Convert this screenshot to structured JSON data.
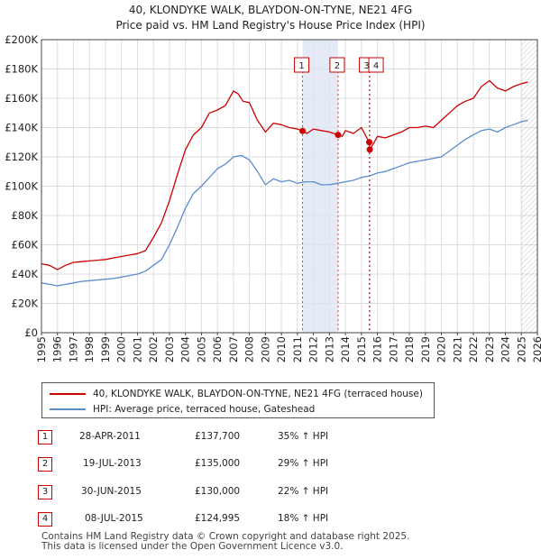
{
  "title_line1": "40, KLONDYKE WALK, BLAYDON-ON-TYNE, NE21 4FG",
  "title_line2": "Price paid vs. HM Land Registry's House Price Index (HPI)",
  "chart_data": {
    "type": "line",
    "title": "40, KLONDYKE WALK, BLAYDON-ON-TYNE, NE21 4FG",
    "subtitle": "Price paid vs. HM Land Registry's House Price Index (HPI)",
    "xlabel": "",
    "ylabel": "",
    "xlim": [
      1995,
      2026
    ],
    "ylim": [
      0,
      200000
    ],
    "y_ticks": [
      0,
      20000,
      40000,
      60000,
      80000,
      100000,
      120000,
      140000,
      160000,
      180000,
      200000
    ],
    "y_tick_labels": [
      "£0",
      "£20K",
      "£40K",
      "£60K",
      "£80K",
      "£100K",
      "£120K",
      "£140K",
      "£160K",
      "£180K",
      "£200K"
    ],
    "x_ticks": [
      1995,
      1996,
      1997,
      1998,
      1999,
      2000,
      2001,
      2002,
      2003,
      2004,
      2005,
      2006,
      2007,
      2008,
      2009,
      2010,
      2011,
      2012,
      2013,
      2014,
      2015,
      2016,
      2017,
      2018,
      2019,
      2020,
      2021,
      2022,
      2023,
      2024,
      2025,
      2026
    ],
    "x_tick_labels": [
      "1995",
      "1996",
      "1997",
      "1998",
      "1999",
      "2000",
      "2001",
      "2002",
      "2003",
      "2004",
      "2005",
      "2006",
      "2007",
      "2008",
      "2009",
      "2010",
      "2011",
      "2012",
      "2013",
      "2014",
      "2015",
      "2016",
      "2017",
      "2018",
      "2019",
      "2020",
      "2021",
      "2022",
      "2023",
      "2024",
      "2025",
      "2026"
    ],
    "grid": true,
    "series": [
      {
        "name": "40, KLONDYKE WALK, BLAYDON-ON-TYNE, NE21 4FG (terraced house)",
        "color": "#cc0000",
        "x": [
          1995.0,
          1995.5,
          1996.0,
          1996.5,
          1997.0,
          1997.5,
          1998.0,
          1998.5,
          1999.0,
          1999.5,
          2000.0,
          2000.5,
          2001.0,
          2001.5,
          2002.0,
          2002.5,
          2003.0,
          2003.5,
          2004.0,
          2004.5,
          2005.0,
          2005.5,
          2006.0,
          2006.5,
          2007.0,
          2007.3,
          2007.6,
          2008.0,
          2008.5,
          2009.0,
          2009.5,
          2010.0,
          2010.5,
          2011.0,
          2011.32,
          2011.6,
          2012.0,
          2012.5,
          2013.0,
          2013.54,
          2013.8,
          2014.0,
          2014.5,
          2015.0,
          2015.49,
          2015.52,
          2015.8,
          2016.0,
          2016.5,
          2017.0,
          2017.5,
          2018.0,
          2018.5,
          2019.0,
          2019.5,
          2020.0,
          2020.5,
          2021.0,
          2021.5,
          2022.0,
          2022.5,
          2023.0,
          2023.5,
          2024.0,
          2024.5,
          2025.0,
          2025.4
        ],
        "values": [
          47000,
          46000,
          43000,
          46000,
          48000,
          48500,
          49000,
          49500,
          50000,
          51000,
          52000,
          53000,
          54000,
          56000,
          65000,
          75000,
          90000,
          108000,
          125000,
          135000,
          140000,
          150000,
          152000,
          155000,
          165000,
          163000,
          158000,
          157000,
          145000,
          137000,
          143000,
          142000,
          140000,
          139000,
          137700,
          136000,
          139000,
          138000,
          137000,
          135000,
          134000,
          138000,
          136000,
          140000,
          130000,
          124995,
          130000,
          134000,
          133000,
          135000,
          137000,
          140000,
          140000,
          141000,
          140000,
          145000,
          150000,
          155000,
          158000,
          160000,
          168000,
          172000,
          167000,
          165000,
          168000,
          170000,
          171000
        ]
      },
      {
        "name": "HPI: Average price, terraced house, Gateshead",
        "color": "#5b8ccc",
        "x": [
          1995.0,
          1995.5,
          1996.0,
          1996.5,
          1997.0,
          1997.5,
          1998.0,
          1998.5,
          1999.0,
          1999.5,
          2000.0,
          2000.5,
          2001.0,
          2001.5,
          2002.0,
          2002.5,
          2003.0,
          2003.5,
          2004.0,
          2004.5,
          2005.0,
          2005.5,
          2006.0,
          2006.5,
          2007.0,
          2007.5,
          2008.0,
          2008.5,
          2009.0,
          2009.5,
          2010.0,
          2010.5,
          2011.0,
          2011.5,
          2012.0,
          2012.5,
          2013.0,
          2013.5,
          2014.0,
          2014.5,
          2015.0,
          2015.5,
          2016.0,
          2016.5,
          2017.0,
          2017.5,
          2018.0,
          2018.5,
          2019.0,
          2019.5,
          2020.0,
          2020.5,
          2021.0,
          2021.5,
          2022.0,
          2022.5,
          2023.0,
          2023.5,
          2024.0,
          2024.5,
          2025.0,
          2025.4
        ],
        "values": [
          34000,
          33000,
          32000,
          33000,
          34000,
          35000,
          35500,
          36000,
          36500,
          37000,
          38000,
          39000,
          40000,
          42000,
          46000,
          50000,
          60000,
          72000,
          85000,
          95000,
          100000,
          106000,
          112000,
          115000,
          120000,
          121000,
          118000,
          110000,
          101000,
          105000,
          103000,
          104000,
          102000,
          103000,
          103000,
          101000,
          101000,
          102000,
          103000,
          104000,
          106000,
          107000,
          109000,
          110000,
          112000,
          114000,
          116000,
          117000,
          118000,
          119000,
          120000,
          124000,
          128000,
          132000,
          135000,
          138000,
          139000,
          137000,
          140000,
          142000,
          144000,
          145000
        ]
      }
    ],
    "annotations": [
      {
        "label": "1",
        "x": 2011.32,
        "value": 137700
      },
      {
        "label": "2",
        "x": 2013.54,
        "value": 135000
      },
      {
        "label": "3",
        "x": 2015.49,
        "value": 130000
      },
      {
        "label": "4",
        "x": 2015.52,
        "value": 124995
      }
    ],
    "shaded_period": [
      2011.32,
      2013.54
    ],
    "forecast_hatch_from": 2025.0
  },
  "legend": {
    "items": [
      {
        "label": "40, KLONDYKE WALK, BLAYDON-ON-TYNE, NE21 4FG (terraced house)",
        "color": "#cc0000"
      },
      {
        "label": "HPI: Average price, terraced house, Gateshead",
        "color": "#5b8ccc"
      }
    ]
  },
  "sales": [
    {
      "num": "1",
      "date": "28-APR-2011",
      "price": "£137,700",
      "hpi": "35% ↑ HPI"
    },
    {
      "num": "2",
      "date": "19-JUL-2013",
      "price": "£135,000",
      "hpi": "29% ↑ HPI"
    },
    {
      "num": "3",
      "date": "30-JUN-2015",
      "price": "£130,000",
      "hpi": "22% ↑ HPI"
    },
    {
      "num": "4",
      "date": "08-JUL-2015",
      "price": "£124,995",
      "hpi": "18% ↑ HPI"
    }
  ],
  "footer": {
    "line1": "Contains HM Land Registry data © Crown copyright and database right 2025.",
    "line2": "This data is licensed under the Open Government Licence v3.0."
  }
}
